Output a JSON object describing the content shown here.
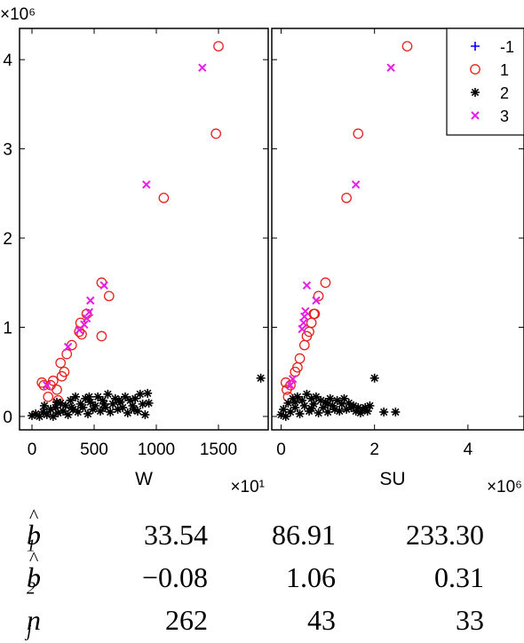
{
  "chart_data": [
    {
      "type": "scatter",
      "xlabel": "W",
      "x_exponent": "×10¹",
      "y_exponent": "×10⁶",
      "x_ticks": [
        0,
        500,
        1000,
        1500
      ],
      "y_ticks": [
        0,
        1,
        2,
        3,
        4
      ],
      "xlim": [
        -100,
        1900
      ],
      "ylim": [
        -0.15,
        4.35
      ],
      "series": [
        {
          "name": "1",
          "marker": "circle",
          "color": "#e8211d",
          "points": [
            [
              80,
              0.38
            ],
            [
              95,
              0.35
            ],
            [
              130,
              0.22
            ],
            [
              150,
              0.35
            ],
            [
              170,
              0.4
            ],
            [
              200,
              0.3
            ],
            [
              210,
              0.18
            ],
            [
              230,
              0.6
            ],
            [
              240,
              0.45
            ],
            [
              260,
              0.5
            ],
            [
              280,
              0.7
            ],
            [
              320,
              0.8
            ],
            [
              380,
              0.95
            ],
            [
              400,
              0.92
            ],
            [
              390,
              1.05
            ],
            [
              440,
              1.15
            ],
            [
              560,
              0.9
            ],
            [
              560,
              1.5
            ],
            [
              620,
              1.35
            ],
            [
              1060,
              2.45
            ],
            [
              1480,
              3.17
            ],
            [
              1500,
              4.15
            ]
          ]
        },
        {
          "name": "2",
          "marker": "star",
          "color": "#000000",
          "points": [
            [
              0,
              0.01
            ],
            [
              30,
              0.03
            ],
            [
              60,
              0.0
            ],
            [
              90,
              0.05
            ],
            [
              120,
              0.02
            ],
            [
              150,
              0.08
            ],
            [
              170,
              0.0
            ],
            [
              190,
              0.1
            ],
            [
              210,
              0.04
            ],
            [
              230,
              0.15
            ],
            [
              250,
              0.06
            ],
            [
              270,
              0.12
            ],
            [
              290,
              0.02
            ],
            [
              310,
              0.18
            ],
            [
              330,
              0.08
            ],
            [
              350,
              0.22
            ],
            [
              370,
              0.05
            ],
            [
              390,
              0.14
            ],
            [
              410,
              0.1
            ],
            [
              430,
              0.2
            ],
            [
              450,
              0.03
            ],
            [
              470,
              0.16
            ],
            [
              490,
              0.08
            ],
            [
              510,
              0.12
            ],
            [
              530,
              0.22
            ],
            [
              550,
              0.06
            ],
            [
              570,
              0.18
            ],
            [
              590,
              0.1
            ],
            [
              610,
              0.25
            ],
            [
              630,
              0.05
            ],
            [
              650,
              0.14
            ],
            [
              670,
              0.2
            ],
            [
              690,
              0.08
            ],
            [
              710,
              0.16
            ],
            [
              730,
              0.1
            ],
            [
              750,
              0.22
            ],
            [
              770,
              0.04
            ],
            [
              790,
              0.18
            ],
            [
              810,
              0.12
            ],
            [
              830,
              0.2
            ],
            [
              850,
              0.06
            ],
            [
              870,
              0.25
            ],
            [
              890,
              0.14
            ],
            [
              910,
              0.02
            ],
            [
              930,
              0.26
            ],
            [
              940,
              0.15
            ],
            [
              100,
              0.12
            ],
            [
              200,
              0.16
            ],
            [
              320,
              0.1
            ],
            [
              460,
              0.22
            ],
            [
              580,
              0.14
            ],
            [
              700,
              0.18
            ],
            [
              820,
              0.08
            ],
            [
              1840,
              0.43
            ]
          ]
        },
        {
          "name": "3",
          "marker": "x",
          "color": "#e81ee8",
          "points": [
            [
              120,
              0.35
            ],
            [
              290,
              0.78
            ],
            [
              380,
              0.97
            ],
            [
              420,
              1.03
            ],
            [
              440,
              1.1
            ],
            [
              460,
              1.17
            ],
            [
              470,
              1.3
            ],
            [
              580,
              1.47
            ],
            [
              920,
              2.6
            ],
            [
              1370,
              3.91
            ]
          ]
        }
      ]
    },
    {
      "type": "scatter",
      "xlabel": "SU",
      "x_exponent": "×10⁶",
      "x_ticks": [
        0,
        2,
        4
      ],
      "xlim": [
        -0.2,
        5.2
      ],
      "ylim": [
        -0.15,
        4.35
      ],
      "series": [
        {
          "name": "1",
          "marker": "circle",
          "color": "#e8211d",
          "points": [
            [
              0.1,
              0.38
            ],
            [
              0.12,
              0.3
            ],
            [
              0.15,
              0.22
            ],
            [
              0.2,
              0.35
            ],
            [
              0.3,
              0.5
            ],
            [
              0.35,
              0.55
            ],
            [
              0.4,
              0.65
            ],
            [
              0.5,
              0.8
            ],
            [
              0.55,
              0.9
            ],
            [
              0.6,
              0.95
            ],
            [
              0.65,
              1.05
            ],
            [
              0.7,
              1.15
            ],
            [
              0.72,
              1.15
            ],
            [
              0.8,
              1.35
            ],
            [
              0.95,
              1.5
            ],
            [
              1.4,
              2.45
            ],
            [
              1.65,
              3.17
            ],
            [
              2.7,
              4.15
            ]
          ]
        },
        {
          "name": "2",
          "marker": "star",
          "color": "#000000",
          "points": [
            [
              0.0,
              0.02
            ],
            [
              0.05,
              0.08
            ],
            [
              0.1,
              0.0
            ],
            [
              0.15,
              0.15
            ],
            [
              0.2,
              0.05
            ],
            [
              0.25,
              0.2
            ],
            [
              0.3,
              0.1
            ],
            [
              0.35,
              0.22
            ],
            [
              0.4,
              0.03
            ],
            [
              0.45,
              0.18
            ],
            [
              0.5,
              0.12
            ],
            [
              0.55,
              0.25
            ],
            [
              0.6,
              0.06
            ],
            [
              0.65,
              0.2
            ],
            [
              0.7,
              0.14
            ],
            [
              0.75,
              0.22
            ],
            [
              0.8,
              0.04
            ],
            [
              0.85,
              0.18
            ],
            [
              0.9,
              0.1
            ],
            [
              0.95,
              0.16
            ],
            [
              1.0,
              0.05
            ],
            [
              1.05,
              0.2
            ],
            [
              1.1,
              0.12
            ],
            [
              1.15,
              0.08
            ],
            [
              1.2,
              0.18
            ],
            [
              1.25,
              0.06
            ],
            [
              1.3,
              0.14
            ],
            [
              1.35,
              0.2
            ],
            [
              1.4,
              0.08
            ],
            [
              1.45,
              0.15
            ],
            [
              1.5,
              0.1
            ],
            [
              1.55,
              0.12
            ],
            [
              1.6,
              0.06
            ],
            [
              1.65,
              0.1
            ],
            [
              1.7,
              0.04
            ],
            [
              1.75,
              0.08
            ],
            [
              1.8,
              0.1
            ],
            [
              1.85,
              0.06
            ],
            [
              1.9,
              0.12
            ],
            [
              2.0,
              0.43
            ],
            [
              2.2,
              0.05
            ],
            [
              2.45,
              0.05
            ],
            [
              0.3,
              0.16
            ],
            [
              0.65,
              0.09
            ],
            [
              1.0,
              0.14
            ]
          ]
        },
        {
          "name": "3",
          "marker": "x",
          "color": "#e81ee8",
          "points": [
            [
              0.2,
              0.35
            ],
            [
              0.25,
              0.42
            ],
            [
              0.45,
              0.98
            ],
            [
              0.48,
              1.05
            ],
            [
              0.5,
              1.12
            ],
            [
              0.52,
              1.18
            ],
            [
              0.55,
              1.47
            ],
            [
              0.75,
              1.3
            ],
            [
              1.6,
              2.6
            ],
            [
              2.35,
              3.91
            ]
          ]
        }
      ]
    }
  ],
  "legend": {
    "placement": "top-right",
    "entries": [
      {
        "label": "-1",
        "marker": "plus",
        "color": "#0000ff",
        "text_color": "#888888"
      },
      {
        "label": "1",
        "marker": "circle",
        "color": "#e8211d",
        "text_color": "#000000"
      },
      {
        "label": "2",
        "marker": "star",
        "color": "#000000",
        "text_color": "#000000"
      },
      {
        "label": "3",
        "marker": "x",
        "color": "#e81ee8",
        "text_color": "#000000"
      }
    ]
  },
  "stats": {
    "rows": [
      {
        "label_main": "b",
        "label_sub": "1",
        "hat": true,
        "values": [
          "33.54",
          "86.91",
          "233.30"
        ]
      },
      {
        "label_main": "b",
        "label_sub": "2",
        "hat": true,
        "values": [
          "−0.08",
          "1.06",
          "0.31"
        ]
      },
      {
        "label_main": "n",
        "label_sub": "j",
        "hat": false,
        "values": [
          "262",
          "43",
          "33"
        ]
      }
    ]
  }
}
